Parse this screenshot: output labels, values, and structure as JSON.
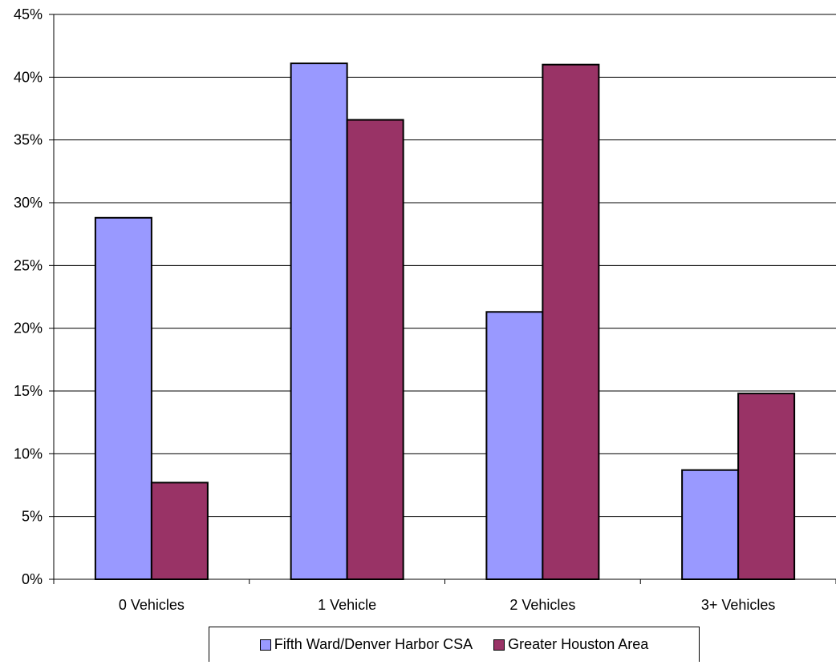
{
  "chart_data": {
    "type": "bar",
    "categories": [
      "0 Vehicles",
      "1 Vehicle",
      "2 Vehicles",
      "3+ Vehicles"
    ],
    "series": [
      {
        "name": "Fifth Ward/Denver Harbor CSA",
        "values": [
          28.8,
          41.1,
          21.3,
          8.7
        ],
        "color": "#9999ff"
      },
      {
        "name": "Greater Houston Area",
        "values": [
          7.7,
          36.6,
          41.0,
          14.8
        ],
        "color": "#993366"
      }
    ],
    "ylim": [
      0,
      45
    ],
    "yticks": [
      "0%",
      "5%",
      "10%",
      "15%",
      "20%",
      "25%",
      "30%",
      "35%",
      "40%",
      "45%"
    ],
    "grid": true,
    "legend_position": "bottom"
  }
}
